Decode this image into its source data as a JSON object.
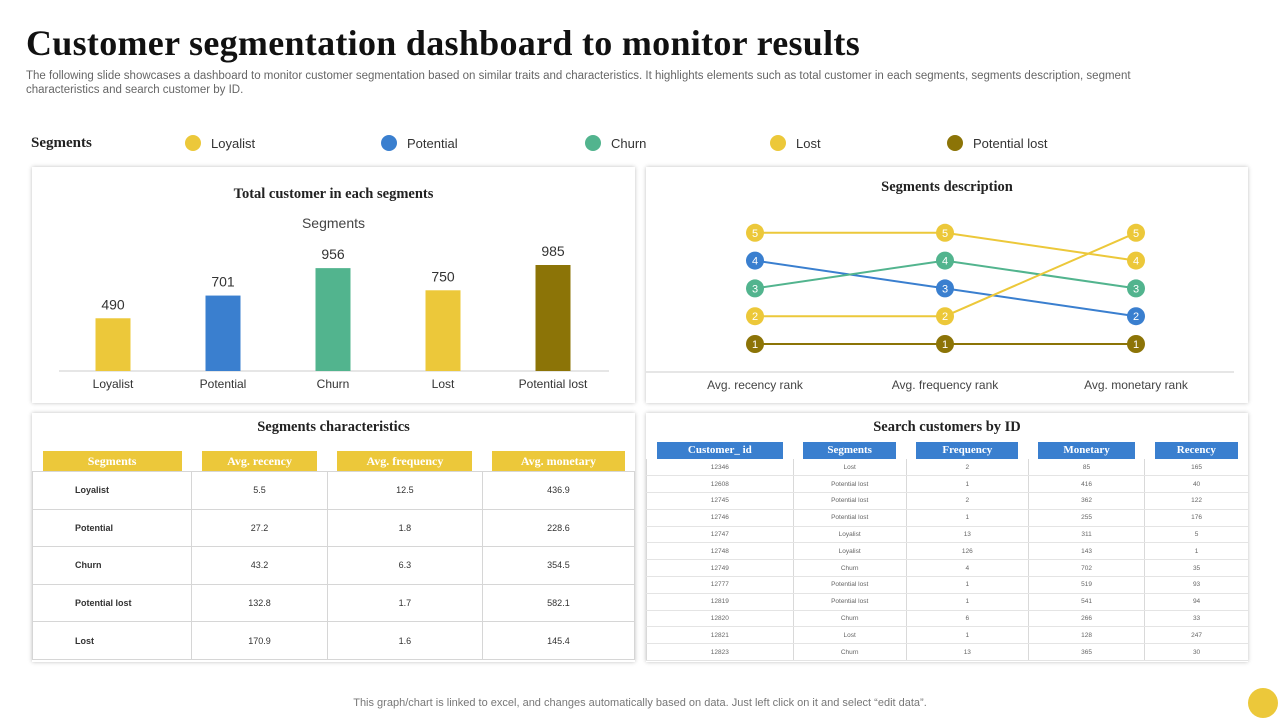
{
  "title": "Customer segmentation dashboard to monitor results",
  "subtitle": "The following slide showcases a dashboard to monitor customer segmentation based on similar traits and characteristics. It highlights elements such as total customer in each segments, segments description, segment characteristics and search customer by ID.",
  "legend": {
    "title": "Segments",
    "items": [
      {
        "label": "Loyalist",
        "color": "#ECC83A"
      },
      {
        "label": "Potential",
        "color": "#3A7FCF"
      },
      {
        "label": "Churn",
        "color": "#52B48E"
      },
      {
        "label": "Lost",
        "color": "#ECC83A"
      },
      {
        "label": "Potential lost",
        "color": "#8C7407"
      }
    ]
  },
  "chart_data": [
    {
      "type": "bar",
      "title": "Total customer in each segments",
      "subtitle": "Segments",
      "categories": [
        "Loyalist",
        "Potential",
        "Churn",
        "Lost",
        "Potential lost"
      ],
      "values": [
        490,
        701,
        956,
        750,
        985
      ],
      "colors": [
        "#ECC83A",
        "#3A7FCF",
        "#52B48E",
        "#ECC83A",
        "#8C7407"
      ],
      "ylim": [
        0,
        1000
      ]
    },
    {
      "type": "line",
      "title": "Segments description",
      "categories": [
        "Avg. recency rank",
        "Avg. frequency rank",
        "Avg. monetary rank"
      ],
      "series": [
        {
          "values": [
            5,
            5,
            4
          ],
          "color": "#ECC83A"
        },
        {
          "values": [
            4,
            3,
            2
          ],
          "color": "#3A7FCF"
        },
        {
          "values": [
            3,
            4,
            3
          ],
          "color": "#52B48E"
        },
        {
          "values": [
            2,
            2,
            5
          ],
          "color": "#ECC83A"
        },
        {
          "values": [
            1,
            1,
            1
          ],
          "color": "#8C7407"
        }
      ],
      "ylim": [
        1,
        5
      ]
    }
  ],
  "characteristics": {
    "title": "Segments characteristics",
    "headers": [
      "Segments",
      "Avg. recency",
      "Avg. frequency",
      "Avg. monetary"
    ],
    "rows": [
      [
        "Loyalist",
        "5.5",
        "12.5",
        "436.9"
      ],
      [
        "Potential",
        "27.2",
        "1.8",
        "228.6"
      ],
      [
        "Churn",
        "43.2",
        "6.3",
        "354.5"
      ],
      [
        "Potential lost",
        "132.8",
        "1.7",
        "582.1"
      ],
      [
        "Lost",
        "170.9",
        "1.6",
        "145.4"
      ]
    ]
  },
  "search": {
    "title": "Search customers by ID",
    "headers": [
      "Customer_ id",
      "Segments",
      "Frequency",
      "Monetary",
      "Recency"
    ],
    "rows": [
      [
        "12346",
        "Lost",
        "2",
        "85",
        "165"
      ],
      [
        "12608",
        "Potential lost",
        "1",
        "416",
        "40"
      ],
      [
        "12745",
        "Potential lost",
        "2",
        "362",
        "122"
      ],
      [
        "12746",
        "Potential lost",
        "1",
        "255",
        "176"
      ],
      [
        "12747",
        "Loyalist",
        "13",
        "311",
        "5"
      ],
      [
        "12748",
        "Loyalist",
        "126",
        "143",
        "1"
      ],
      [
        "12749",
        "Churn",
        "4",
        "702",
        "35"
      ],
      [
        "12777",
        "Potential lost",
        "1",
        "519",
        "93"
      ],
      [
        "12819",
        "Potential lost",
        "1",
        "541",
        "94"
      ],
      [
        "12820",
        "Churn",
        "6",
        "266",
        "33"
      ],
      [
        "12821",
        "Lost",
        "1",
        "128",
        "247"
      ],
      [
        "12823",
        "Churn",
        "13",
        "365",
        "30"
      ]
    ]
  },
  "footer": "This graph/chart is linked to excel,  and changes automatically based on data. Just left click on it and select “edit data”."
}
